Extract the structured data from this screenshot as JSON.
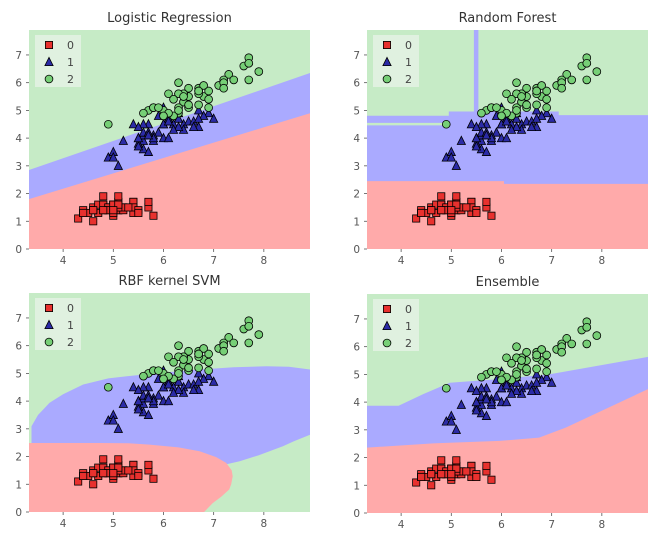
{
  "chart_data": [
    {
      "type": "scatter",
      "title": "Logistic Regression",
      "xlim": [
        3.32,
        8.92
      ],
      "ylim": [
        0,
        7.9
      ],
      "xticks": [
        "4",
        "5",
        "6",
        "7",
        "8"
      ],
      "yticks": [
        "0",
        "1",
        "2",
        "3",
        "4",
        "5",
        "6",
        "7"
      ],
      "legend": [
        "0",
        "1",
        "2"
      ],
      "legend_position": "top-left",
      "grid": false,
      "regions": {
        "background": "2",
        "1": [
          [
            3.32,
            2.85
          ],
          [
            8.92,
            6.35
          ],
          [
            8.92,
            0
          ],
          [
            3.32,
            0
          ]
        ],
        "0": [
          [
            3.32,
            1.8
          ],
          [
            8.92,
            4.9
          ],
          [
            8.92,
            0
          ],
          [
            3.32,
            0
          ]
        ]
      }
    },
    {
      "type": "scatter",
      "title": "Random Forest",
      "xlim": [
        3.32,
        8.92
      ],
      "ylim": [
        0,
        7.9
      ],
      "xticks": [
        "4",
        "5",
        "6",
        "7",
        "8"
      ],
      "yticks": [
        "0",
        "1",
        "2",
        "3",
        "4",
        "5",
        "6",
        "7"
      ],
      "legend": [
        "0",
        "1",
        "2"
      ],
      "legend_position": "top-left",
      "grid": false,
      "regions": {
        "background": "2",
        "1": [
          [
            3.32,
            4.81
          ],
          [
            4.95,
            4.81
          ],
          [
            4.95,
            4.96
          ],
          [
            5.45,
            4.96
          ],
          [
            5.45,
            7.9
          ],
          [
            5.54,
            7.9
          ],
          [
            5.54,
            4.96
          ],
          [
            7.14,
            4.96
          ],
          [
            7.14,
            4.83
          ],
          [
            8.92,
            4.83
          ],
          [
            8.92,
            0
          ],
          [
            3.32,
            0
          ]
        ],
        "2_strip": [
          [
            3.32,
            4.46
          ],
          [
            4.87,
            4.46
          ],
          [
            4.87,
            4.55
          ],
          [
            3.32,
            4.55
          ]
        ],
        "0": [
          [
            3.32,
            2.45
          ],
          [
            6.05,
            2.45
          ],
          [
            6.05,
            2.35
          ],
          [
            8.92,
            2.35
          ],
          [
            8.92,
            0
          ],
          [
            3.32,
            0
          ]
        ]
      }
    },
    {
      "type": "scatter",
      "title": "RBF kernel SVM",
      "xlim": [
        3.32,
        8.92
      ],
      "ylim": [
        0,
        7.9
      ],
      "xticks": [
        "4",
        "5",
        "6",
        "7",
        "8"
      ],
      "yticks": [
        "0",
        "1",
        "2",
        "3",
        "4",
        "5",
        "6",
        "7"
      ],
      "legend": [
        "0",
        "1",
        "2"
      ],
      "legend_position": "top-left",
      "grid": false,
      "regions": {
        "background": "2",
        "1": [
          [
            3.37,
            2.49
          ],
          [
            3.37,
            3.09
          ],
          [
            3.5,
            3.5
          ],
          [
            3.73,
            3.94
          ],
          [
            4.0,
            4.25
          ],
          [
            4.4,
            4.6
          ],
          [
            4.9,
            4.82
          ],
          [
            5.39,
            4.92
          ],
          [
            6.0,
            5.03
          ],
          [
            6.72,
            5.14
          ],
          [
            7.4,
            5.22
          ],
          [
            8.05,
            5.26
          ],
          [
            8.5,
            5.24
          ],
          [
            8.92,
            5.14
          ],
          [
            8.92,
            2.79
          ],
          [
            8.6,
            2.55
          ],
          [
            8.38,
            2.37
          ],
          [
            7.9,
            2.05
          ],
          [
            7.52,
            1.83
          ],
          [
            7.2,
            1.7
          ],
          [
            6.5,
            2.1
          ],
          [
            3.37,
            2.2
          ]
        ],
        "0": [
          [
            3.32,
            2.49
          ],
          [
            4.72,
            2.49
          ],
          [
            5.3,
            2.48
          ],
          [
            5.72,
            2.43
          ],
          [
            6.3,
            2.33
          ],
          [
            6.72,
            2.19
          ],
          [
            7.05,
            1.98
          ],
          [
            7.25,
            1.77
          ],
          [
            7.36,
            1.5
          ],
          [
            7.38,
            1.29
          ],
          [
            7.35,
            1.0
          ],
          [
            7.31,
            0.81
          ],
          [
            7.15,
            0.55
          ],
          [
            6.98,
            0.32
          ],
          [
            6.81,
            0
          ],
          [
            3.32,
            0
          ]
        ]
      }
    },
    {
      "type": "scatter",
      "title": "Ensemble",
      "xlim": [
        3.32,
        8.92
      ],
      "ylim": [
        0,
        7.9
      ],
      "xticks": [
        "4",
        "5",
        "6",
        "7",
        "8"
      ],
      "yticks": [
        "0",
        "1",
        "2",
        "3",
        "4",
        "5",
        "6",
        "7"
      ],
      "legend": [
        "0",
        "1",
        "2"
      ],
      "legend_position": "top-left",
      "grid": false,
      "regions": {
        "background": "2",
        "1": [
          [
            3.32,
            3.87
          ],
          [
            3.95,
            3.87
          ],
          [
            4.44,
            4.29
          ],
          [
            4.97,
            4.7
          ],
          [
            5.96,
            4.83
          ],
          [
            6.95,
            5.0
          ],
          [
            8.92,
            5.63
          ],
          [
            8.92,
            0
          ],
          [
            3.32,
            0
          ]
        ],
        "0": [
          [
            3.32,
            2.36
          ],
          [
            4.64,
            2.51
          ],
          [
            5.96,
            2.6
          ],
          [
            6.75,
            2.72
          ],
          [
            7.28,
            3.08
          ],
          [
            8.92,
            4.47
          ],
          [
            8.92,
            0
          ],
          [
            3.32,
            0
          ]
        ]
      }
    }
  ],
  "points": {
    "0": {
      "x": [
        5.1,
        4.9,
        4.7,
        4.6,
        5.0,
        5.4,
        4.6,
        5.0,
        4.4,
        4.9,
        5.4,
        4.8,
        4.8,
        4.3,
        5.8,
        5.7,
        5.4,
        5.1,
        5.7,
        5.1,
        5.4,
        5.1,
        4.6,
        5.1,
        4.8,
        5.0,
        5.0,
        5.2,
        5.2,
        4.7,
        4.8,
        5.4,
        5.2,
        5.5,
        4.9,
        5.0,
        5.5,
        4.9,
        4.4,
        5.1,
        5.0,
        4.5,
        4.4,
        5.0,
        5.1,
        4.8,
        5.1,
        4.6,
        5.3,
        5.0
      ],
      "y": [
        1.4,
        1.4,
        1.3,
        1.5,
        1.4,
        1.7,
        1.4,
        1.5,
        1.4,
        1.5,
        1.5,
        1.6,
        1.4,
        1.1,
        1.2,
        1.5,
        1.3,
        1.4,
        1.7,
        1.5,
        1.7,
        1.5,
        1.0,
        1.7,
        1.9,
        1.6,
        1.6,
        1.5,
        1.4,
        1.6,
        1.6,
        1.5,
        1.5,
        1.4,
        1.5,
        1.2,
        1.3,
        1.4,
        1.3,
        1.5,
        1.3,
        1.3,
        1.3,
        1.6,
        1.9,
        1.4,
        1.6,
        1.4,
        1.5,
        1.4
      ]
    },
    "1": {
      "x": [
        7.0,
        6.4,
        6.9,
        5.5,
        6.5,
        5.7,
        6.3,
        4.9,
        6.6,
        5.2,
        5.0,
        5.9,
        6.0,
        6.1,
        5.6,
        6.7,
        5.6,
        5.8,
        6.2,
        5.6,
        5.9,
        6.1,
        6.3,
        6.1,
        6.4,
        6.6,
        6.8,
        6.7,
        6.0,
        5.7,
        5.5,
        5.5,
        5.8,
        6.0,
        5.4,
        6.0,
        6.7,
        6.3,
        5.6,
        5.5,
        5.5,
        6.1,
        5.8,
        5.0,
        5.6,
        5.7,
        5.7,
        6.2,
        5.1,
        5.7
      ],
      "y": [
        4.7,
        4.5,
        4.9,
        4.0,
        4.6,
        4.5,
        4.7,
        3.3,
        4.6,
        3.9,
        3.5,
        4.2,
        4.0,
        4.7,
        3.6,
        4.4,
        4.5,
        4.1,
        4.5,
        3.9,
        4.8,
        4.0,
        4.9,
        4.7,
        4.3,
        4.4,
        4.8,
        5.0,
        4.5,
        3.5,
        3.8,
        3.7,
        3.9,
        5.1,
        4.5,
        4.5,
        4.7,
        4.4,
        4.1,
        4.0,
        4.4,
        4.6,
        4.0,
        3.3,
        4.2,
        4.2,
        4.2,
        4.3,
        3.0,
        4.1
      ]
    },
    "2": {
      "x": [
        6.3,
        5.8,
        7.1,
        6.3,
        6.5,
        7.6,
        4.9,
        7.3,
        6.7,
        7.2,
        6.5,
        6.4,
        6.8,
        5.7,
        5.8,
        6.4,
        6.5,
        7.7,
        7.7,
        6.0,
        6.9,
        5.6,
        7.7,
        6.3,
        6.7,
        7.2,
        6.2,
        6.1,
        6.4,
        7.2,
        7.4,
        7.9,
        6.4,
        6.3,
        6.1,
        7.7,
        6.3,
        6.4,
        6.0,
        6.9,
        6.7,
        6.9,
        5.8,
        6.8,
        6.7,
        6.7,
        6.3,
        6.5,
        6.2,
        5.9
      ],
      "y": [
        6.0,
        5.1,
        5.9,
        5.6,
        5.8,
        6.6,
        4.5,
        6.3,
        5.8,
        6.1,
        5.1,
        5.3,
        5.5,
        5.0,
        5.1,
        5.3,
        5.5,
        6.7,
        6.9,
        5.0,
        5.7,
        4.9,
        6.7,
        4.9,
        5.7,
        6.0,
        4.8,
        4.9,
        5.6,
        5.8,
        6.1,
        6.4,
        5.6,
        5.1,
        5.6,
        6.1,
        5.6,
        5.5,
        4.8,
        5.4,
        5.6,
        5.1,
        5.1,
        5.9,
        5.7,
        5.2,
        5.0,
        5.2,
        5.4,
        5.1
      ]
    }
  },
  "colors": {
    "region": {
      "0": "#ffaaaa",
      "1": "#aaaaff",
      "2": "#c6ebc6"
    },
    "marker": {
      "0": "#e8312e",
      "1": "#2b2ba6",
      "2": "#76cf76"
    },
    "markers": {
      "0": "square",
      "1": "triangle",
      "2": "circle"
    }
  }
}
